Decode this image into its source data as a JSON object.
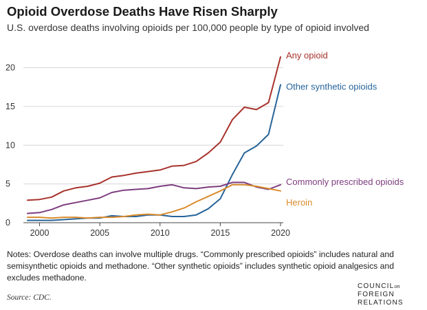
{
  "header": {
    "title": "Opioid Overdose Deaths Have Risen Sharply",
    "subtitle": "U.S. overdose deaths involving opioids per 100,000 people by type of opioid involved"
  },
  "chart_data": {
    "type": "line",
    "title": "Opioid Overdose Deaths Have Risen Sharply",
    "subtitle": "U.S. overdose deaths involving opioids per 100,000 people by type of opioid involved",
    "xlabel": "",
    "ylabel": "",
    "xlim": [
      1999,
      2020
    ],
    "ylim": [
      0,
      22
    ],
    "x_ticks": [
      2000,
      2005,
      2010,
      2015,
      2020
    ],
    "y_ticks": [
      0,
      5,
      10,
      15,
      20
    ],
    "grid": "horizontal",
    "legend": "direct labels at right end of lines",
    "x": [
      1999,
      2000,
      2001,
      2002,
      2003,
      2004,
      2005,
      2006,
      2007,
      2008,
      2009,
      2010,
      2011,
      2012,
      2013,
      2014,
      2015,
      2016,
      2017,
      2018,
      2019,
      2020
    ],
    "series": [
      {
        "name": "Any opioid",
        "color": "#a8312b",
        "values": [
          2.9,
          3.0,
          3.3,
          4.1,
          4.5,
          4.7,
          5.1,
          5.9,
          6.1,
          6.4,
          6.6,
          6.8,
          7.3,
          7.4,
          7.9,
          9.0,
          10.4,
          13.3,
          14.9,
          14.6,
          15.5,
          21.4
        ]
      },
      {
        "name": "Other synthetic opioids",
        "color": "#26639a",
        "values": [
          0.3,
          0.3,
          0.3,
          0.4,
          0.5,
          0.6,
          0.6,
          0.9,
          0.8,
          0.8,
          1.0,
          1.0,
          0.8,
          0.8,
          1.0,
          1.8,
          3.1,
          6.2,
          9.0,
          9.9,
          11.4,
          17.8
        ]
      },
      {
        "name": "Commonly prescribed opioids",
        "color": "#7d3c7f",
        "values": [
          1.2,
          1.3,
          1.7,
          2.3,
          2.6,
          2.9,
          3.2,
          3.9,
          4.2,
          4.3,
          4.4,
          4.7,
          4.9,
          4.5,
          4.4,
          4.6,
          4.7,
          5.2,
          5.2,
          4.6,
          4.3,
          4.9
        ]
      },
      {
        "name": "Heroin",
        "color": "#d98b2b",
        "values": [
          0.7,
          0.7,
          0.6,
          0.7,
          0.7,
          0.6,
          0.7,
          0.7,
          0.8,
          1.0,
          1.1,
          1.0,
          1.4,
          1.9,
          2.7,
          3.4,
          4.1,
          4.9,
          4.9,
          4.7,
          4.4,
          4.1
        ]
      }
    ]
  },
  "footer": {
    "notes": "Notes: Overdose deaths can involve multiple drugs. “Commonly prescribed opioids” includes natural and semisynthetic opioids and methadone. “Other synthetic opioids” includes synthetic opioid analgesics and excludes methadone.",
    "source": "Source: CDC.",
    "logo": {
      "line1": "COUNCIL",
      "line1_suffix": "on",
      "line2": "FOREIGN",
      "line3": "RELATIONS"
    }
  }
}
